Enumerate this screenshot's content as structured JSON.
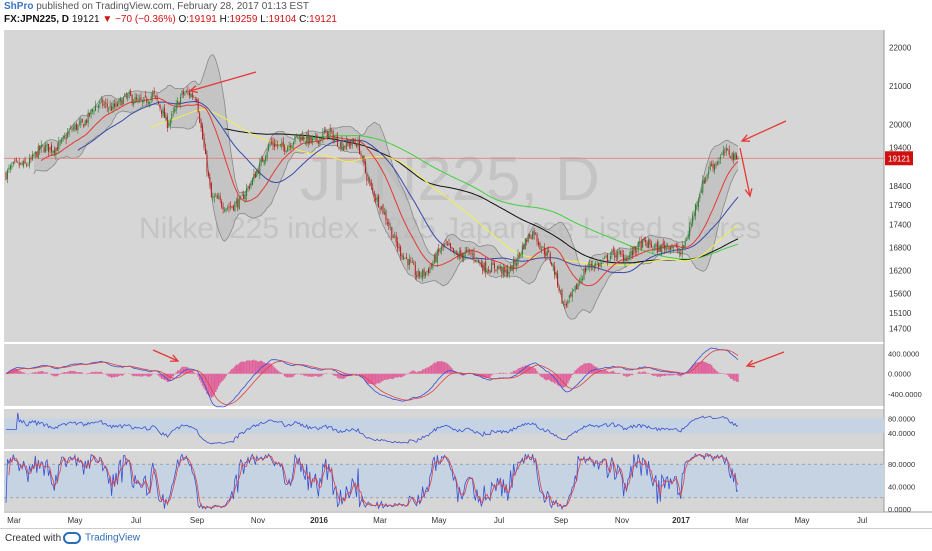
{
  "header": {
    "author": "ShPro",
    "published_text": "published on TradingView.com, February 28, 2017 01:13 EST",
    "symbol": "FX:JPN225, D",
    "last": "19121",
    "change": "▼ −70 (−0.36%)",
    "o_label": "O:",
    "o_value": "19191",
    "h_label": "H:",
    "h_value": "19259",
    "l_label": "L:",
    "l_value": "19104",
    "c_label": "C:",
    "c_value": "19121"
  },
  "footer": {
    "created_with": "Created with",
    "brand": "TradingView"
  },
  "colors": {
    "pane_bg": "#d6d6d6",
    "up": "#2e7d32",
    "down": "#b71c1c",
    "bb": "#888888",
    "ma_red": "#e53935",
    "ma_blue": "#3949ab",
    "ma_yellow": "#f0f050",
    "ma_green": "#40d040",
    "ma_black": "#111111",
    "annotation": "#e53935",
    "macd_hist": "#e0609a",
    "rsi": "#3a50d0",
    "stoch_k": "#3a50d0",
    "stoch_d": "#e04040"
  },
  "chart_data": {
    "type": "candlestick",
    "watermark_symbol": "JPN225, D",
    "watermark_desc": "Nikkei 225 index - 225 Japanese Listed shares",
    "last_price_label": "19121",
    "price_ticks": [
      22000,
      21000,
      20000,
      19400,
      18400,
      17900,
      17400,
      16800,
      16200,
      15600,
      15100,
      14700
    ],
    "price_ylim": [
      14500,
      22300
    ],
    "x_labels": [
      "Mar",
      "May",
      "Jul",
      "Sep",
      "Nov",
      "2016",
      "Mar",
      "May",
      "Jul",
      "Sep",
      "Nov",
      "2017",
      "Mar",
      "May",
      "Jul"
    ],
    "price_anchors": {
      "t": [
        0,
        20,
        40,
        60,
        80,
        100,
        110,
        120,
        130,
        140,
        160,
        170,
        180,
        200,
        220,
        240,
        245,
        260,
        280,
        300,
        320,
        340,
        360,
        370,
        380,
        400,
        420,
        440,
        460,
        470,
        480,
        490,
        500
      ],
      "v": [
        18700,
        19200,
        19600,
        20400,
        20600,
        20700,
        20100,
        20700,
        20800,
        18000,
        17900,
        18800,
        19400,
        19600,
        19700,
        19400,
        18800,
        17400,
        16000,
        16800,
        16500,
        16100,
        17200,
        16600,
        15300,
        16400,
        16600,
        16900,
        16700,
        17800,
        19000,
        19200,
        19121
      ]
    },
    "indicators": {
      "macd": {
        "ticks": [
          "400.0000",
          "0.0000",
          "-400.0000"
        ],
        "ylim": [
          -600,
          550
        ]
      },
      "rsi": {
        "ticks": [
          "80.0000",
          "40.0000"
        ],
        "ylim": [
          0,
          100
        ],
        "band": [
          40,
          80
        ]
      },
      "stochastic": {
        "ticks": [
          "80.0000",
          "40.0000",
          "0.0000"
        ],
        "ylim": [
          0,
          100
        ],
        "band": [
          20,
          80
        ]
      }
    }
  }
}
